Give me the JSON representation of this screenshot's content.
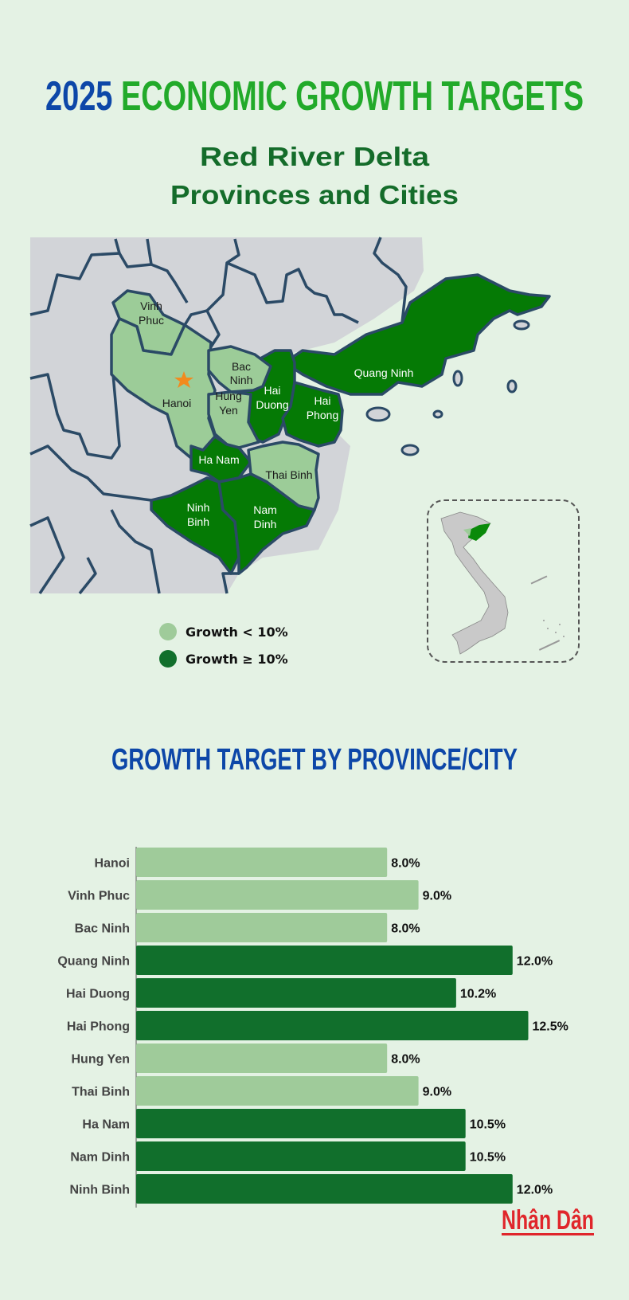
{
  "header": {
    "title_year": "2025",
    "title_rest": "ECONOMIC GROWTH TARGETS",
    "subtitle_line1": "Red River Delta",
    "subtitle_line2": "Provinces and Cities"
  },
  "colors": {
    "year_blue": "#0d47a8",
    "title_green": "#22aa2a",
    "subtitle_green": "#146c2a",
    "low_growth": "#9fcb9a",
    "high_growth": "#116f2c",
    "map_low": "#9ccc98",
    "map_high": "#057a05",
    "land_gray": "#d2d4d8",
    "border": "#2b4a66",
    "capital_star": "#f28a1e",
    "brand_red": "#e0262b"
  },
  "map": {
    "capital_icon": "star-icon",
    "provinces": [
      {
        "name_lines": [
          "Vinh",
          "Phuc"
        ],
        "group": "low"
      },
      {
        "name_lines": [
          "Hanoi"
        ],
        "group": "low"
      },
      {
        "name_lines": [
          "Bac",
          "Ninh"
        ],
        "group": "low"
      },
      {
        "name_lines": [
          "Hung",
          "Yen"
        ],
        "group": "low"
      },
      {
        "name_lines": [
          "Hai",
          "Duong"
        ],
        "group": "high"
      },
      {
        "name_lines": [
          "Hai",
          "Phong"
        ],
        "group": "high"
      },
      {
        "name_lines": [
          "Quang Ninh"
        ],
        "group": "high"
      },
      {
        "name_lines": [
          "Ha Nam"
        ],
        "group": "high"
      },
      {
        "name_lines": [
          "Thai Binh"
        ],
        "group": "low"
      },
      {
        "name_lines": [
          "Ninh",
          "Binh"
        ],
        "group": "high"
      },
      {
        "name_lines": [
          "Nam",
          "Dinh"
        ],
        "group": "high"
      }
    ],
    "legend": [
      {
        "label": "Growth < 10%",
        "group": "low"
      },
      {
        "label": "Growth ≥ 10%",
        "group": "high"
      }
    ]
  },
  "chart_data": {
    "type": "bar",
    "orientation": "horizontal",
    "title": "GROWTH TARGET BY PROVINCE/CITY",
    "categories": [
      "Hanoi",
      "Vinh Phuc",
      "Bac Ninh",
      "Quang Ninh",
      "Hai Duong",
      "Hai Phong",
      "Hung Yen",
      "Thai Binh",
      "Ha Nam",
      "Nam Dinh",
      "Ninh Binh"
    ],
    "values": [
      8.0,
      9.0,
      8.0,
      12.0,
      10.2,
      12.5,
      8.0,
      9.0,
      10.5,
      10.5,
      12.0
    ],
    "value_labels": [
      "8.0%",
      "9.0%",
      "8.0%",
      "12.0%",
      "10.2%",
      "12.5%",
      "8.0%",
      "9.0%",
      "10.5%",
      "10.5%",
      "12.0%"
    ],
    "unit": "%",
    "color_rule": "value >= 10 dark green, else light green",
    "grid": false,
    "xlim": [
      0,
      14
    ]
  },
  "footer": {
    "logo_text": "Nhân Dân"
  }
}
